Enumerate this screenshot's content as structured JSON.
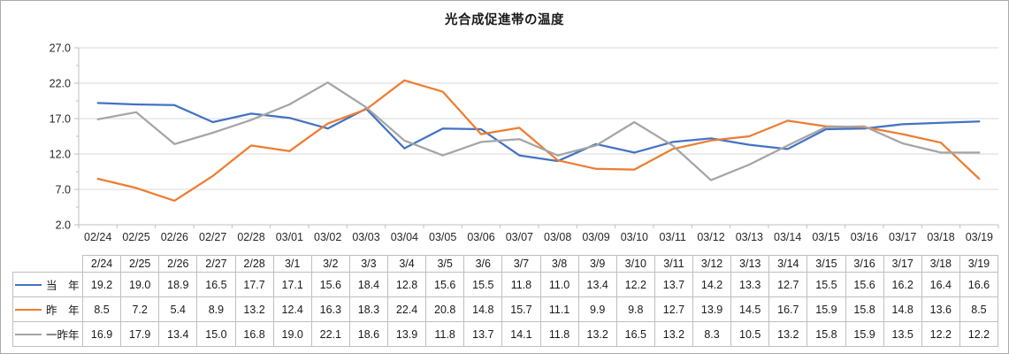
{
  "chart_data": {
    "type": "line",
    "title": "光合成促進帯の温度",
    "x_axis_labels": [
      "02/24",
      "02/25",
      "02/26",
      "02/27",
      "02/28",
      "03/01",
      "03/02",
      "03/03",
      "03/04",
      "03/05",
      "03/06",
      "03/07",
      "03/08",
      "03/09",
      "03/10",
      "03/11",
      "03/12",
      "03/13",
      "03/14",
      "03/15",
      "03/16",
      "03/17",
      "03/18",
      "03/19"
    ],
    "ylim": [
      2.0,
      27.0
    ],
    "yticks": [
      2.0,
      7.0,
      12.0,
      17.0,
      22.0,
      27.0
    ],
    "ytick_labels": [
      "2.0",
      "7.0",
      "12.0",
      "17.0",
      "22.0",
      "27.0"
    ],
    "grid": "horizontal-only",
    "legend_position": "table-left",
    "series": [
      {
        "name": "当　年",
        "slug": "this-year",
        "color": "#4472C4",
        "values": [
          19.2,
          19.0,
          18.9,
          16.5,
          17.7,
          17.1,
          15.6,
          18.4,
          12.8,
          15.6,
          15.5,
          11.8,
          11.0,
          13.4,
          12.2,
          13.7,
          14.2,
          13.3,
          12.7,
          15.5,
          15.6,
          16.2,
          16.4,
          16.6
        ]
      },
      {
        "name": "昨　年",
        "slug": "last-year",
        "color": "#ED7D31",
        "values": [
          8.5,
          7.2,
          5.4,
          8.9,
          13.2,
          12.4,
          16.3,
          18.3,
          22.4,
          20.8,
          14.8,
          15.7,
          11.1,
          9.9,
          9.8,
          12.7,
          13.9,
          14.5,
          16.7,
          15.9,
          15.8,
          14.8,
          13.6,
          8.5
        ]
      },
      {
        "name": "一昨年",
        "slug": "two-years-ago",
        "color": "#A5A5A5",
        "values": [
          16.9,
          17.9,
          13.4,
          15.0,
          16.8,
          19.0,
          22.1,
          18.6,
          13.9,
          11.8,
          13.7,
          14.1,
          11.8,
          13.2,
          16.5,
          13.2,
          8.3,
          10.5,
          13.2,
          15.8,
          15.9,
          13.5,
          12.2,
          12.2
        ]
      }
    ]
  },
  "table": {
    "header_dates": [
      "2/24",
      "2/25",
      "2/26",
      "2/27",
      "2/28",
      "3/1",
      "3/2",
      "3/3",
      "3/4",
      "3/5",
      "3/6",
      "3/7",
      "3/8",
      "3/9",
      "3/10",
      "3/11",
      "3/12",
      "3/13",
      "3/14",
      "3/15",
      "3/16",
      "3/17",
      "3/18",
      "3/19"
    ]
  },
  "colors": {
    "gridline": "#D9D9D9",
    "axis": "#BFBFBF",
    "table_border": "#BFBFBF",
    "text": "#262626",
    "outer_border": "#ABABAB"
  }
}
